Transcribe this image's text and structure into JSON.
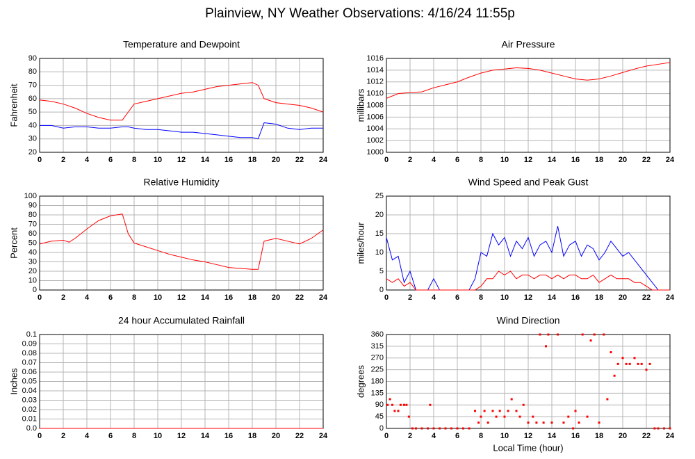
{
  "title": "Plainview, NY Weather Observations: 4/16/24 11:55p",
  "chart_data": [
    {
      "type": "line",
      "title": "Temperature and Dewpoint",
      "ylabel": "Fahrenheit",
      "x": [
        0,
        1,
        2,
        3,
        4,
        5,
        6,
        7,
        7.5,
        8,
        9,
        10,
        11,
        12,
        13,
        14,
        15,
        16,
        17,
        18,
        18.5,
        19,
        20,
        21,
        22,
        23,
        24
      ],
      "series": [
        {
          "color": "#ff0000",
          "values": [
            59,
            58,
            56,
            53,
            49,
            46,
            44,
            44,
            50,
            56,
            58,
            60,
            62,
            64,
            65,
            67,
            69,
            70,
            71,
            72,
            70,
            60,
            57,
            56,
            55,
            53,
            50
          ]
        },
        {
          "color": "#0000ff",
          "values": [
            40,
            40,
            38,
            39,
            39,
            38,
            38,
            39,
            39,
            38,
            37,
            37,
            36,
            35,
            35,
            34,
            33,
            32,
            31,
            31,
            30,
            42,
            41,
            38,
            37,
            38,
            38
          ]
        }
      ],
      "xlim": [
        0,
        24
      ],
      "xticks": [
        0,
        2,
        4,
        6,
        8,
        10,
        12,
        14,
        16,
        18,
        20,
        22,
        24
      ],
      "ylim": [
        20,
        90
      ],
      "yticks": [
        20,
        30,
        40,
        50,
        60,
        70,
        80,
        90
      ],
      "grid": true
    },
    {
      "type": "line",
      "title": "Air Pressure",
      "ylabel": "millibars",
      "x": [
        0,
        1,
        2,
        3,
        4,
        5,
        6,
        7,
        8,
        9,
        10,
        11,
        12,
        13,
        14,
        15,
        16,
        17,
        18,
        19,
        20,
        21,
        22,
        23,
        24
      ],
      "series": [
        {
          "color": "#ff0000",
          "values": [
            1009.2,
            1010,
            1010.2,
            1010.3,
            1011,
            1011.5,
            1012,
            1012.8,
            1013.5,
            1014,
            1014.2,
            1014.4,
            1014.3,
            1014,
            1013.5,
            1013,
            1012.5,
            1012.3,
            1012.5,
            1013,
            1013.6,
            1014.2,
            1014.7,
            1015,
            1015.3
          ]
        }
      ],
      "xlim": [
        0,
        24
      ],
      "xticks": [
        0,
        2,
        4,
        6,
        8,
        10,
        12,
        14,
        16,
        18,
        20,
        22,
        24
      ],
      "ylim": [
        1000,
        1016
      ],
      "yticks": [
        1000,
        1002,
        1004,
        1006,
        1008,
        1010,
        1012,
        1014,
        1016
      ],
      "grid": true
    },
    {
      "type": "line",
      "title": "Relative Humidity",
      "ylabel": "Percent",
      "x": [
        0,
        1,
        2,
        2.5,
        3,
        4,
        5,
        6,
        7,
        7.5,
        8,
        9,
        10,
        11,
        12,
        13,
        14,
        15,
        16,
        17,
        18,
        18.5,
        19,
        20,
        21,
        22,
        23,
        24
      ],
      "series": [
        {
          "color": "#ff0000",
          "values": [
            49,
            52,
            53,
            51,
            55,
            65,
            74,
            79,
            81,
            60,
            50,
            46,
            42,
            38,
            35,
            32,
            30,
            27,
            24,
            23,
            22,
            22,
            52,
            55,
            52,
            49,
            55,
            64
          ]
        }
      ],
      "xlim": [
        0,
        24
      ],
      "xticks": [
        0,
        2,
        4,
        6,
        8,
        10,
        12,
        14,
        16,
        18,
        20,
        22,
        24
      ],
      "ylim": [
        0,
        100
      ],
      "yticks": [
        0,
        10,
        20,
        30,
        40,
        50,
        60,
        70,
        80,
        90,
        100
      ],
      "grid": true
    },
    {
      "type": "line",
      "title": "Wind Speed and Peak Gust",
      "ylabel": "miles/hour",
      "x": [
        0,
        0.5,
        1,
        1.5,
        2,
        2.5,
        3,
        3.5,
        4,
        4.5,
        5,
        5.5,
        6,
        6.5,
        7,
        7.5,
        8,
        8.5,
        9,
        9.5,
        10,
        10.5,
        11,
        11.5,
        12,
        12.5,
        13,
        13.5,
        14,
        14.5,
        15,
        15.5,
        16,
        16.5,
        17,
        17.5,
        18,
        18.5,
        19,
        19.5,
        20,
        20.5,
        21,
        21.5,
        22,
        22.5,
        23,
        23.5,
        24
      ],
      "series": [
        {
          "color": "#0000ff",
          "values": [
            14,
            8,
            9,
            2,
            5,
            0,
            0,
            0,
            3,
            0,
            0,
            0,
            0,
            0,
            0,
            3,
            10,
            9,
            15,
            12,
            14,
            9,
            13,
            11,
            14,
            9,
            12,
            13,
            10,
            17,
            9,
            12,
            13,
            9,
            12,
            11,
            8,
            10,
            13,
            11,
            9,
            10,
            8,
            6,
            4,
            2,
            0,
            0,
            0
          ]
        },
        {
          "color": "#ff0000",
          "values": [
            3,
            2,
            3,
            1,
            2,
            0,
            0,
            0,
            0,
            0,
            0,
            0,
            0,
            0,
            0,
            0,
            1,
            3,
            3,
            5,
            4,
            5,
            3,
            4,
            4,
            3,
            4,
            4,
            3,
            4,
            3,
            4,
            4,
            3,
            3,
            4,
            2,
            3,
            4,
            3,
            3,
            3,
            2,
            2,
            1,
            0,
            0,
            0,
            0
          ]
        }
      ],
      "xlim": [
        0,
        24
      ],
      "xticks": [
        0,
        2,
        4,
        6,
        8,
        10,
        12,
        14,
        16,
        18,
        20,
        22,
        24
      ],
      "ylim": [
        0,
        25
      ],
      "yticks": [
        0,
        5,
        10,
        15,
        20,
        25
      ],
      "grid": true
    },
    {
      "type": "line",
      "title": "24 hour Accumulated Rainfall",
      "ylabel": "Inches",
      "x": [
        0,
        24
      ],
      "series": [
        {
          "color": "#ff0000",
          "values": [
            0,
            0
          ]
        }
      ],
      "xlim": [
        0,
        24
      ],
      "xticks": [
        0,
        2,
        4,
        6,
        8,
        10,
        12,
        14,
        16,
        18,
        20,
        22,
        24
      ],
      "ylim": [
        0,
        0.1
      ],
      "yticks": [
        {
          "value": 0,
          "label": "0.0"
        },
        0.01,
        0.02,
        0.03,
        0.04,
        0.05,
        0.06,
        0.07,
        0.08,
        0.09,
        0.1
      ],
      "grid": true
    },
    {
      "type": "scatter",
      "title": "Wind Direction",
      "ylabel": "degrees",
      "xlabel": "Local Time (hour)",
      "x": [
        0.1,
        0.3,
        0.5,
        0.7,
        1,
        1.2,
        1.5,
        1.7,
        1.9,
        2.2,
        2.5,
        3,
        3.5,
        3.7,
        4,
        4.5,
        5,
        5.5,
        6,
        6.5,
        7,
        7.5,
        7.8,
        8,
        8.3,
        8.6,
        9,
        9.3,
        9.6,
        10,
        10.3,
        10.6,
        11,
        11.3,
        11.6,
        12,
        12.4,
        12.7,
        13,
        13.3,
        13.5,
        13.7,
        14,
        14.5,
        15,
        15.4,
        15.8,
        16,
        16.3,
        16.6,
        17,
        17.3,
        17.6,
        18,
        18.4,
        18.7,
        19,
        19.3,
        19.6,
        20,
        20.3,
        20.6,
        21,
        21.3,
        21.6,
        22,
        22.3,
        22.7,
        23,
        23.5,
        24
      ],
      "series": [
        {
          "color": "#ff0000",
          "values": [
            90,
            112,
            90,
            67,
            67,
            90,
            90,
            90,
            45,
            0,
            0,
            0,
            0,
            90,
            0,
            0,
            0,
            0,
            0,
            0,
            0,
            67,
            22,
            45,
            67,
            22,
            67,
            45,
            67,
            45,
            67,
            112,
            67,
            45,
            90,
            22,
            45,
            22,
            360,
            22,
            315,
            360,
            22,
            360,
            22,
            45,
            0,
            67,
            22,
            360,
            45,
            337,
            360,
            22,
            360,
            112,
            292,
            202,
            247,
            270,
            247,
            247,
            270,
            247,
            247,
            225,
            247,
            0,
            0,
            0,
            0
          ]
        }
      ],
      "xlim": [
        0,
        24
      ],
      "xticks": [
        0,
        2,
        4,
        6,
        8,
        10,
        12,
        14,
        16,
        18,
        20,
        22,
        24
      ],
      "ylim": [
        0,
        360
      ],
      "yticks": [
        0,
        45,
        90,
        135,
        180,
        225,
        270,
        315,
        360
      ],
      "grid": true
    }
  ]
}
